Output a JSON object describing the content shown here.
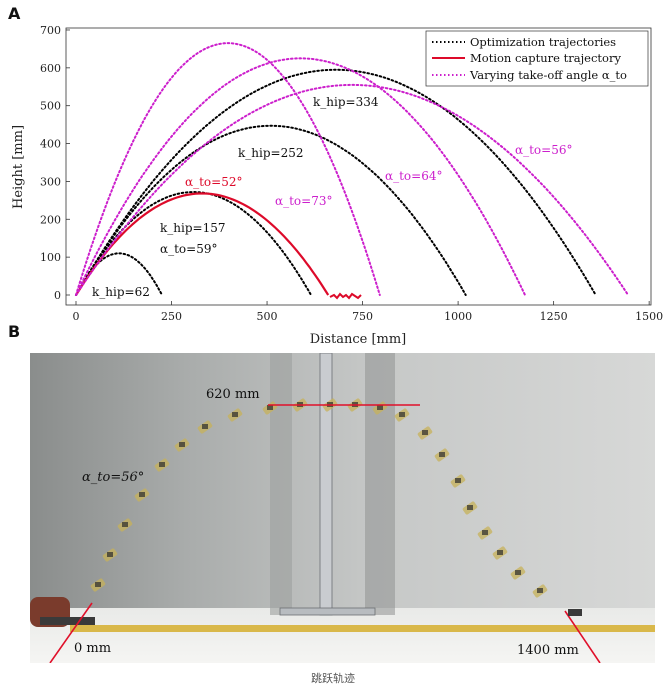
{
  "panels": {
    "a": "A",
    "b": "B"
  },
  "chart_data": {
    "type": "line",
    "xlabel": "Distance [mm]",
    "ylabel": "Height [mm]",
    "xlim": [
      -20,
      1500
    ],
    "ylim": [
      -20,
      700
    ],
    "xticks": [
      "0",
      "250",
      "500",
      "750",
      "1000",
      "1250",
      "1500"
    ],
    "yticks": [
      "0",
      "100",
      "200",
      "300",
      "400",
      "500",
      "600",
      "700"
    ],
    "legend": {
      "placement": "top-right",
      "entries": [
        {
          "label": "Optimization trajectories",
          "color": "#000000",
          "style": "dotted"
        },
        {
          "label": "Motion capture trajectory",
          "color": "#dd0a2a",
          "style": "solid"
        },
        {
          "label": "Varying take-off angle α_to",
          "color": "#cc1fcc",
          "style": "dotted"
        }
      ]
    },
    "series": [
      {
        "group": "optimization",
        "color": "#000000",
        "style": "dotted",
        "x_end": 225,
        "peak_x": 110,
        "peak_y": 110
      },
      {
        "group": "optimization",
        "color": "#000000",
        "style": "dotted",
        "x_end": 615,
        "peak_x": 305,
        "peak_y": 272
      },
      {
        "group": "optimization",
        "color": "#000000",
        "style": "dotted",
        "x_end": 1020,
        "peak_x": 505,
        "peak_y": 447
      },
      {
        "group": "optimization",
        "color": "#000000",
        "style": "dotted",
        "x_end": 1360,
        "peak_x": 680,
        "peak_y": 595
      },
      {
        "group": "motion_capture",
        "color": "#dd0a2a",
        "style": "solid",
        "x_end": 660,
        "peak_x": 340,
        "peak_y": 268
      },
      {
        "group": "take_off_angle",
        "color": "#cc1fcc",
        "style": "dotted",
        "x_end": 795,
        "peak_x": 390,
        "peak_y": 665
      },
      {
        "group": "take_off_angle",
        "color": "#cc1fcc",
        "style": "dotted",
        "x_end": 1175,
        "peak_x": 580,
        "peak_y": 625
      },
      {
        "group": "take_off_angle",
        "color": "#cc1fcc",
        "style": "dotted",
        "x_end": 1445,
        "peak_x": 720,
        "peak_y": 555
      }
    ],
    "annotations": [
      {
        "text": "k_hip=62",
        "color": "#111111"
      },
      {
        "text": "k_hip=157",
        "color": "#111111"
      },
      {
        "text": "α_to=59°",
        "color": "#111111"
      },
      {
        "text": "k_hip=252",
        "color": "#111111"
      },
      {
        "text": "k_hip=334",
        "color": "#111111"
      },
      {
        "text": "α_to=52°",
        "color": "#dd0a2a"
      },
      {
        "text": "α_to=73°",
        "color": "#cc1fcc"
      },
      {
        "text": "α_to=64°",
        "color": "#cc1fcc"
      },
      {
        "text": "α_to=56°",
        "color": "#cc1fcc"
      }
    ]
  },
  "photo": {
    "angle_label": "α_to=56°",
    "apex_label": "620 mm",
    "start_label": "0 mm",
    "end_label": "1400 mm"
  },
  "caption": "跳跃轨迹"
}
